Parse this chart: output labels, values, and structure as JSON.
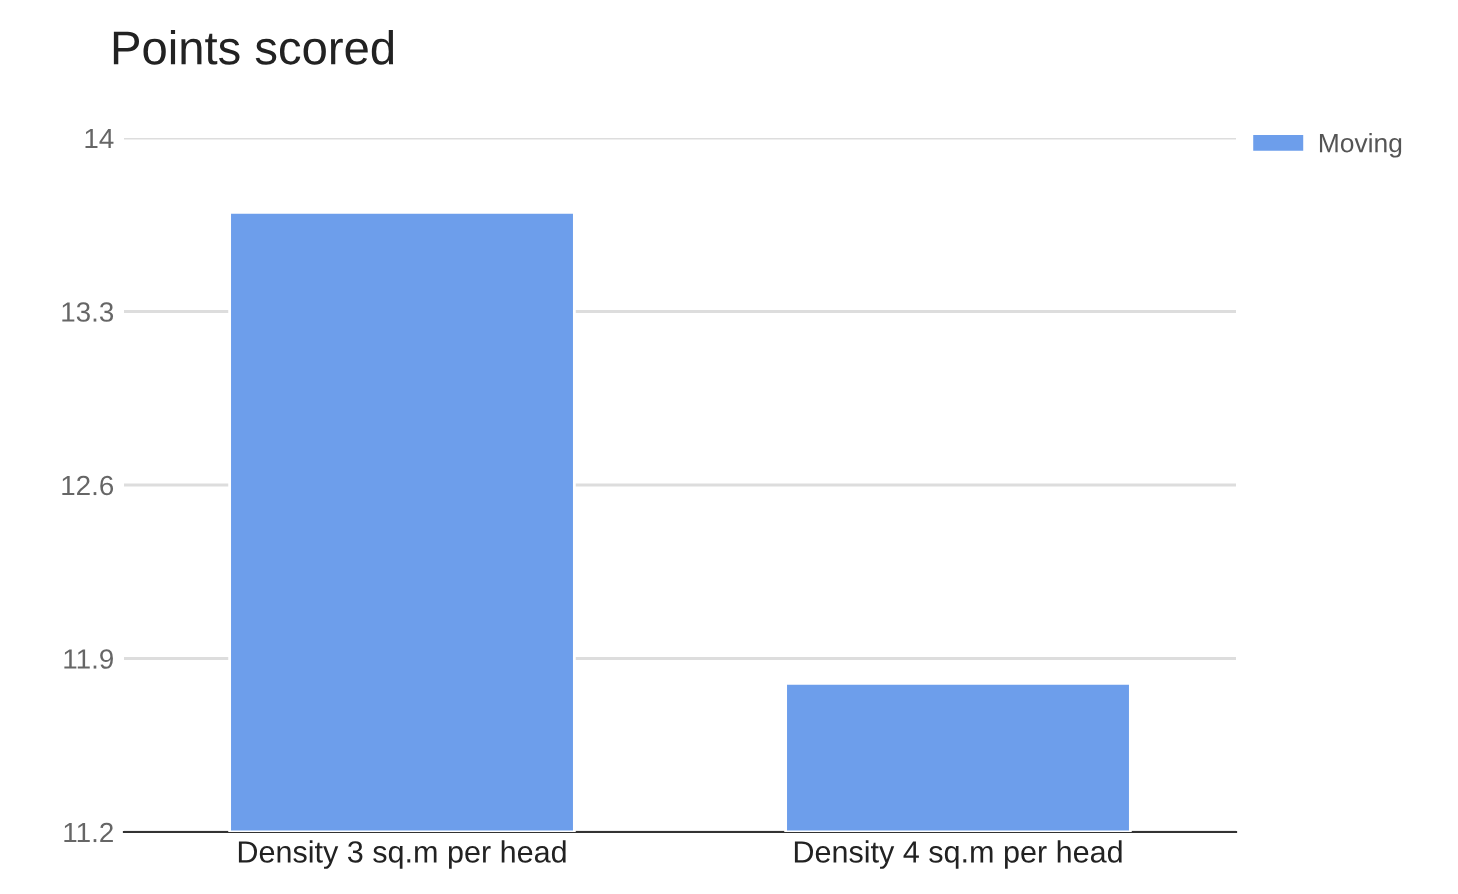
{
  "chart_data": {
    "type": "bar",
    "title": "Points scored",
    "categories": [
      "Density 3 sq.m per head",
      "Density 4 sq.m per head"
    ],
    "series": [
      {
        "name": "Moving",
        "color": "#6d9eeb",
        "values": [
          13.7,
          11.8
        ]
      }
    ],
    "ylim": [
      11.2,
      14
    ],
    "yticks": [
      11.2,
      11.9,
      12.6,
      13.3,
      14
    ],
    "grid": "y",
    "legend": "top right"
  }
}
